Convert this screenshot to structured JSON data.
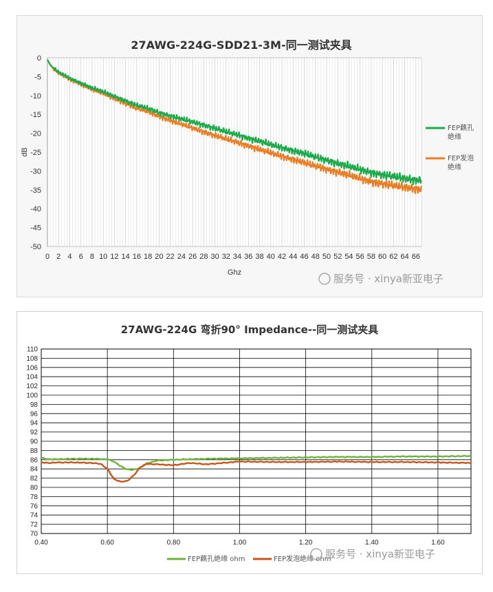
{
  "watermark": "服务号 · xinya新亚电子",
  "colors": {
    "green": "#1aaa4a",
    "orange": "#ec7c22",
    "green2": "#6ab43b",
    "orange2": "#c8551a"
  },
  "chart_data": [
    {
      "type": "line",
      "title": "27AWG-224G-SDD21-3M-同一测试夹具",
      "xlabel": "Ghz",
      "ylabel": "dB",
      "xlim": [
        0,
        67
      ],
      "ylim": [
        -50,
        0
      ],
      "x_ticks": [
        0,
        2,
        4,
        6,
        8,
        10,
        12,
        14,
        16,
        18,
        20,
        22,
        24,
        26,
        28,
        30,
        32,
        34,
        36,
        38,
        40,
        42,
        44,
        46,
        48,
        50,
        52,
        54,
        56,
        58,
        60,
        62,
        64,
        66
      ],
      "y_ticks": [
        0,
        -5,
        -10,
        -15,
        -20,
        -25,
        -30,
        -35,
        -40,
        -45,
        -50
      ],
      "grid": "vertical",
      "legend_position": "right",
      "series": [
        {
          "name": "FEP藕孔\n绝缘",
          "color": "#1aaa4a",
          "x": [
            0,
            0.5,
            1,
            2,
            4,
            6,
            8,
            10,
            12,
            14,
            16,
            18,
            20,
            22,
            24,
            26,
            28,
            30,
            32,
            34,
            36,
            38,
            40,
            42,
            44,
            46,
            48,
            50,
            52,
            54,
            56,
            58,
            60,
            62,
            64,
            66,
            67
          ],
          "y": [
            -0.5,
            -1.8,
            -2.6,
            -3.8,
            -5.4,
            -6.7,
            -8.0,
            -9.0,
            -10.2,
            -11.4,
            -12.6,
            -13.4,
            -14.5,
            -15.4,
            -16.2,
            -17.0,
            -17.8,
            -18.7,
            -19.6,
            -20.4,
            -21.3,
            -22.1,
            -23.0,
            -23.8,
            -24.6,
            -25.4,
            -26.3,
            -27.1,
            -28.0,
            -28.8,
            -29.6,
            -30.4,
            -31.0,
            -31.5,
            -32.0,
            -32.4,
            -32.4
          ]
        },
        {
          "name": "FEP发泡\n绝缘",
          "color": "#ec7c22",
          "x": [
            0,
            0.5,
            1,
            2,
            4,
            6,
            8,
            10,
            12,
            14,
            16,
            18,
            20,
            22,
            24,
            26,
            28,
            30,
            32,
            34,
            36,
            38,
            40,
            42,
            44,
            46,
            48,
            50,
            52,
            54,
            56,
            58,
            60,
            62,
            64,
            66,
            67
          ],
          "y": [
            -0.5,
            -1.9,
            -2.8,
            -4.1,
            -5.7,
            -7.0,
            -8.4,
            -9.5,
            -10.8,
            -12.1,
            -13.4,
            -14.3,
            -15.5,
            -16.6,
            -17.6,
            -18.6,
            -19.6,
            -20.6,
            -21.5,
            -22.4,
            -23.3,
            -24.3,
            -25.2,
            -26.1,
            -26.9,
            -27.8,
            -28.7,
            -29.5,
            -30.3,
            -31.1,
            -32.0,
            -32.8,
            -33.4,
            -33.9,
            -34.3,
            -34.7,
            -34.9
          ]
        }
      ]
    },
    {
      "type": "line",
      "title": "27AWG-224G 弯折90° Impedance--同一测试夹具",
      "xlabel": "",
      "ylabel": "",
      "xlim": [
        0.4,
        1.7
      ],
      "ylim": [
        70,
        110
      ],
      "x_ticks": [
        "0.40",
        "0.60",
        "0.80",
        "1.00",
        "1.20",
        "1.40",
        "1.60"
      ],
      "y_ticks": [
        110,
        108,
        106,
        104,
        102,
        100,
        98,
        96,
        94,
        92,
        90,
        88,
        86,
        84,
        82,
        80,
        78,
        76,
        74,
        72,
        70
      ],
      "grid": "both",
      "legend_position": "bottom",
      "series": [
        {
          "name": "FEP藕孔绝缘 ohm",
          "color": "#6ab43b",
          "x": [
            0.4,
            0.42,
            0.45,
            0.5,
            0.55,
            0.6,
            0.62,
            0.64,
            0.66,
            0.68,
            0.7,
            0.72,
            0.75,
            0.8,
            0.85,
            0.9,
            1.0,
            1.1,
            1.2,
            1.3,
            1.4,
            1.5,
            1.6,
            1.7
          ],
          "y": [
            86.4,
            86.1,
            86.1,
            86.2,
            86.2,
            86.1,
            85.6,
            84.6,
            83.9,
            83.8,
            84.3,
            85.2,
            85.8,
            86.0,
            86.1,
            86.2,
            86.3,
            86.4,
            86.5,
            86.6,
            86.6,
            86.7,
            86.7,
            86.8
          ]
        },
        {
          "name": "FEP发泡绝缘 ohm",
          "color": "#c8551a",
          "x": [
            0.4,
            0.42,
            0.45,
            0.5,
            0.55,
            0.58,
            0.6,
            0.62,
            0.64,
            0.66,
            0.68,
            0.7,
            0.72,
            0.75,
            0.8,
            0.85,
            0.9,
            1.0,
            1.1,
            1.2,
            1.3,
            1.4,
            1.5,
            1.6,
            1.7
          ],
          "y": [
            85.4,
            85.3,
            85.4,
            85.4,
            85.3,
            85.1,
            84.0,
            81.8,
            81.2,
            81.4,
            82.6,
            84.4,
            85.1,
            85.0,
            84.8,
            85.3,
            85.0,
            85.6,
            85.5,
            85.5,
            85.6,
            85.5,
            85.5,
            85.4,
            85.3
          ]
        }
      ]
    }
  ]
}
